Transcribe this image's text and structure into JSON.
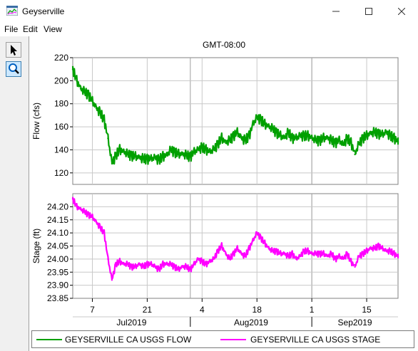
{
  "window": {
    "title": "Geyserville"
  },
  "menu": {
    "items": [
      "File",
      "Edit",
      "View"
    ]
  },
  "toolbar": {
    "tools": [
      "pointer-tool",
      "zoom-tool"
    ]
  },
  "plot": {
    "timezone": "GMT-08:00"
  },
  "colors": {
    "flow": "#00a000",
    "stage": "#ff00ff"
  },
  "chart_data": [
    {
      "type": "line",
      "title": "",
      "xlabel": "",
      "ylabel": "Flow (cfs)",
      "ylim": [
        110,
        220
      ],
      "yticks": [
        120,
        140,
        160,
        180,
        200,
        220
      ],
      "x_start": "2019-07-02",
      "x_end": "2019-09-23",
      "series": [
        {
          "name": "GEYSERVILLE CA USGS FLOW",
          "x": [
            "2019-07-02",
            "2019-07-03",
            "2019-07-04",
            "2019-07-05",
            "2019-07-06",
            "2019-07-07",
            "2019-07-08",
            "2019-07-09",
            "2019-07-10",
            "2019-07-11",
            "2019-07-12",
            "2019-07-13",
            "2019-07-14",
            "2019-07-15",
            "2019-07-16",
            "2019-07-17",
            "2019-07-18",
            "2019-07-19",
            "2019-07-20",
            "2019-07-21",
            "2019-07-22",
            "2019-07-23",
            "2019-07-24",
            "2019-07-25",
            "2019-07-26",
            "2019-07-27",
            "2019-07-28",
            "2019-07-29",
            "2019-07-30",
            "2019-07-31",
            "2019-08-01",
            "2019-08-02",
            "2019-08-03",
            "2019-08-04",
            "2019-08-05",
            "2019-08-06",
            "2019-08-07",
            "2019-08-08",
            "2019-08-09",
            "2019-08-10",
            "2019-08-11",
            "2019-08-12",
            "2019-08-13",
            "2019-08-14",
            "2019-08-15",
            "2019-08-16",
            "2019-08-17",
            "2019-08-18",
            "2019-08-19",
            "2019-08-20",
            "2019-08-21",
            "2019-08-22",
            "2019-08-23",
            "2019-08-24",
            "2019-08-25",
            "2019-08-26",
            "2019-08-27",
            "2019-08-28",
            "2019-08-29",
            "2019-08-30",
            "2019-08-31",
            "2019-09-01",
            "2019-09-02",
            "2019-09-03",
            "2019-09-04",
            "2019-09-05",
            "2019-09-06",
            "2019-09-07",
            "2019-09-08",
            "2019-09-09",
            "2019-09-10",
            "2019-09-11",
            "2019-09-12",
            "2019-09-13",
            "2019-09-14",
            "2019-09-15",
            "2019-09-16",
            "2019-09-17",
            "2019-09-18",
            "2019-09-19",
            "2019-09-20",
            "2019-09-21",
            "2019-09-22",
            "2019-09-23"
          ],
          "values": [
            210,
            200,
            193,
            190,
            188,
            182,
            176,
            172,
            166,
            150,
            128,
            135,
            140,
            138,
            136,
            135,
            134,
            133,
            132,
            132,
            132,
            133,
            131,
            134,
            135,
            140,
            138,
            136,
            136,
            135,
            134,
            138,
            140,
            142,
            140,
            138,
            140,
            145,
            150,
            146,
            148,
            152,
            155,
            150,
            148,
            152,
            162,
            168,
            166,
            162,
            160,
            158,
            155,
            152,
            150,
            155,
            150,
            150,
            152,
            152,
            152,
            150,
            148,
            148,
            150,
            150,
            148,
            146,
            148,
            144,
            150,
            146,
            136,
            145,
            150,
            152,
            154,
            155,
            154,
            153,
            155,
            152,
            150,
            147
          ]
        }
      ]
    },
    {
      "type": "line",
      "title": "",
      "xlabel": "",
      "ylabel": "Stage (ft)",
      "ylim": [
        23.85,
        24.25
      ],
      "yticks": [
        23.85,
        23.9,
        23.95,
        24.0,
        24.05,
        24.1,
        24.15,
        24.2
      ],
      "x_start": "2019-07-02",
      "x_end": "2019-09-23",
      "x_tick_labels": [
        "7",
        "21",
        "4",
        "18",
        "1",
        "15"
      ],
      "x_period_labels": [
        "Jul2019",
        "Aug2019",
        "Sep2019"
      ],
      "series": [
        {
          "name": "GEYSERVILLE CA USGS STAGE",
          "x": [
            "2019-07-02",
            "2019-07-03",
            "2019-07-04",
            "2019-07-05",
            "2019-07-06",
            "2019-07-07",
            "2019-07-08",
            "2019-07-09",
            "2019-07-10",
            "2019-07-11",
            "2019-07-12",
            "2019-07-13",
            "2019-07-14",
            "2019-07-15",
            "2019-07-16",
            "2019-07-17",
            "2019-07-18",
            "2019-07-19",
            "2019-07-20",
            "2019-07-21",
            "2019-07-22",
            "2019-07-23",
            "2019-07-24",
            "2019-07-25",
            "2019-07-26",
            "2019-07-27",
            "2019-07-28",
            "2019-07-29",
            "2019-07-30",
            "2019-07-31",
            "2019-08-01",
            "2019-08-02",
            "2019-08-03",
            "2019-08-04",
            "2019-08-05",
            "2019-08-06",
            "2019-08-07",
            "2019-08-08",
            "2019-08-09",
            "2019-08-10",
            "2019-08-11",
            "2019-08-12",
            "2019-08-13",
            "2019-08-14",
            "2019-08-15",
            "2019-08-16",
            "2019-08-17",
            "2019-08-18",
            "2019-08-19",
            "2019-08-20",
            "2019-08-21",
            "2019-08-22",
            "2019-08-23",
            "2019-08-24",
            "2019-08-25",
            "2019-08-26",
            "2019-08-27",
            "2019-08-28",
            "2019-08-29",
            "2019-08-30",
            "2019-08-31",
            "2019-09-01",
            "2019-09-02",
            "2019-09-03",
            "2019-09-04",
            "2019-09-05",
            "2019-09-06",
            "2019-09-07",
            "2019-09-08",
            "2019-09-09",
            "2019-09-10",
            "2019-09-11",
            "2019-09-12",
            "2019-09-13",
            "2019-09-14",
            "2019-09-15",
            "2019-09-16",
            "2019-09-17",
            "2019-09-18",
            "2019-09-19",
            "2019-09-20",
            "2019-09-21",
            "2019-09-22",
            "2019-09-23"
          ],
          "values": [
            24.23,
            24.2,
            24.19,
            24.18,
            24.17,
            24.16,
            24.14,
            24.12,
            24.1,
            24.0,
            23.92,
            23.98,
            23.99,
            23.98,
            23.98,
            23.97,
            23.97,
            23.98,
            23.97,
            23.98,
            23.98,
            23.97,
            23.96,
            23.98,
            23.98,
            23.98,
            23.97,
            23.96,
            23.97,
            23.97,
            23.96,
            23.98,
            24.0,
            23.99,
            23.98,
            23.99,
            24.0,
            24.03,
            24.05,
            24.02,
            24.0,
            24.02,
            24.04,
            24.02,
            24.01,
            24.04,
            24.07,
            24.1,
            24.08,
            24.06,
            24.04,
            24.03,
            24.03,
            24.02,
            24.02,
            24.01,
            24.02,
            24.0,
            24.01,
            24.03,
            24.03,
            24.02,
            24.02,
            24.02,
            24.02,
            24.01,
            24.02,
            24.0,
            24.01,
            24.0,
            24.02,
            23.99,
            23.97,
            24.01,
            24.02,
            24.03,
            24.04,
            24.04,
            24.05,
            24.04,
            24.03,
            24.03,
            24.02,
            24.01
          ]
        }
      ]
    }
  ]
}
